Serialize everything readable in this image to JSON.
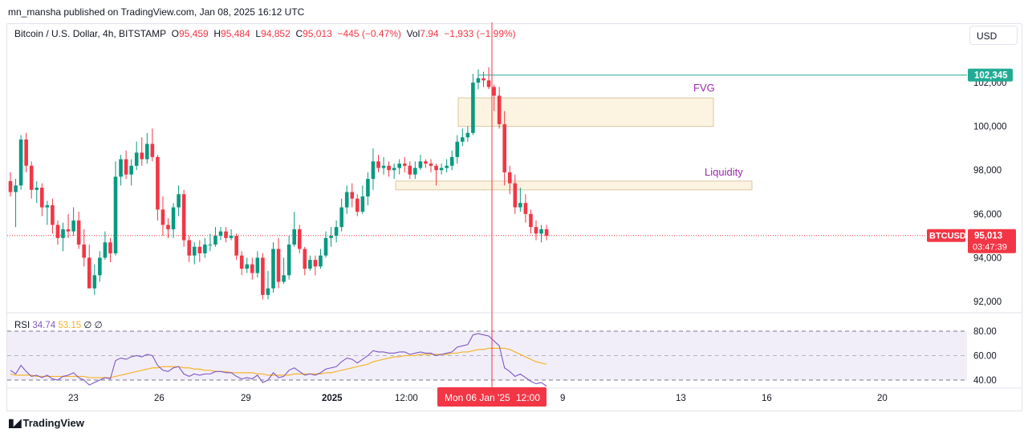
{
  "header": {
    "publish_text": "mn_mansha published on TradingView.com, Jan 08, 2025 16:12 UTC"
  },
  "symbol": {
    "name": "Bitcoin / U.S. Dollar, 4h, BITSTAMP",
    "o_label": "O",
    "o_val": "95,459",
    "h_label": "H",
    "h_val": "95,484",
    "l_label": "L",
    "l_val": "94,852",
    "c_label": "C",
    "c_val": "95,013",
    "change": "−445 (−0.47%)",
    "vol_label": "Vol",
    "vol_val": "7.94",
    "vol_change": "−1,933 (−1.99%)"
  },
  "currency_button": "USD",
  "price_axis": {
    "ticks": [
      "102,000",
      "100,000",
      "98,000",
      "96,000",
      "94,000",
      "92,000"
    ],
    "ticks_value": [
      102000,
      100000,
      98000,
      96000,
      94000,
      92000
    ],
    "high_line_label": "102,345",
    "high_line_value": 102345,
    "current_symbol_tag": "BTCUSD",
    "current_price": "95,013",
    "current_price_value": 95013,
    "countdown": "03:47:39"
  },
  "time_axis": {
    "labels": [
      "23",
      "26",
      "29",
      "2025",
      "12:00",
      "12:00",
      "9",
      "13",
      "16",
      "20"
    ],
    "crosshair_label": "Mon 06 Jan '25"
  },
  "annotations": {
    "fvg": "FVG",
    "liquidity": "Liquidity"
  },
  "rsi": {
    "label": "RSI",
    "value": "34.74",
    "ma_value": "53.15",
    "extra1": "∅",
    "extra2": "∅",
    "ticks": [
      "80.00",
      "60.00",
      "40.00"
    ],
    "ticks_value": [
      80,
      60,
      40
    ]
  },
  "chart_data": {
    "type": "candlestick",
    "candles": [
      [
        97500,
        97000,
        97900,
        96800
      ],
      [
        97000,
        97300,
        97600,
        95400
      ],
      [
        97300,
        99400,
        99600,
        97100
      ],
      [
        99400,
        98200,
        99700,
        97900
      ],
      [
        98200,
        97100,
        98400,
        96700
      ],
      [
        97100,
        97200,
        97500,
        96500
      ],
      [
        97200,
        96300,
        97400,
        95900
      ],
      [
        96300,
        96400,
        96600,
        95500
      ],
      [
        96400,
        95500,
        96700,
        95100
      ],
      [
        95500,
        94900,
        95700,
        94600
      ],
      [
        94900,
        95300,
        95600,
        94300
      ],
      [
        95300,
        95200,
        96000,
        94900
      ],
      [
        95200,
        95700,
        96300,
        95000
      ],
      [
        95700,
        94600,
        96100,
        94400
      ],
      [
        94600,
        94000,
        95300,
        93600
      ],
      [
        94000,
        92600,
        94600,
        92600
      ],
      [
        92600,
        93200,
        93700,
        92300
      ],
      [
        93200,
        94000,
        94300,
        92900
      ],
      [
        94000,
        94700,
        95200,
        93900
      ],
      [
        94700,
        94200,
        94900,
        93800
      ],
      [
        94200,
        97700,
        98400,
        94100
      ],
      [
        97700,
        98500,
        98700,
        97300
      ],
      [
        98500,
        97800,
        98900,
        97600
      ],
      [
        97800,
        98200,
        98500,
        97300
      ],
      [
        98200,
        98800,
        99300,
        98000
      ],
      [
        98800,
        98500,
        99500,
        98200
      ],
      [
        98500,
        99200,
        99700,
        98300
      ],
      [
        99200,
        98600,
        99900,
        98400
      ],
      [
        98600,
        96200,
        98700,
        95700
      ],
      [
        96200,
        95500,
        96800,
        95000
      ],
      [
        95500,
        95300,
        95800,
        94900
      ],
      [
        95300,
        96300,
        96500,
        94900
      ],
      [
        96300,
        96900,
        97300,
        95900
      ],
      [
        96900,
        94800,
        97100,
        94500
      ],
      [
        94800,
        94100,
        95000,
        93800
      ],
      [
        94100,
        94500,
        94700,
        93700
      ],
      [
        94500,
        94200,
        94800,
        93800
      ],
      [
        94200,
        94600,
        94900,
        94000
      ],
      [
        94600,
        94600,
        95100,
        94300
      ],
      [
        94600,
        95000,
        95400,
        94500
      ],
      [
        95000,
        95200,
        95400,
        94800
      ],
      [
        95200,
        94900,
        95400,
        94700
      ],
      [
        94900,
        95000,
        95300,
        94800
      ],
      [
        95000,
        94100,
        95100,
        93900
      ],
      [
        94100,
        93500,
        94300,
        93200
      ],
      [
        93500,
        93700,
        94000,
        93300
      ],
      [
        93700,
        93300,
        94000,
        93000
      ],
      [
        93300,
        94000,
        94300,
        93100
      ],
      [
        94000,
        92300,
        94200,
        92100
      ],
      [
        92300,
        92600,
        93400,
        92100
      ],
      [
        92600,
        94400,
        94700,
        92400
      ],
      [
        94400,
        92900,
        94900,
        92600
      ],
      [
        92900,
        93200,
        94000,
        92800
      ],
      [
        93200,
        94600,
        95000,
        93000
      ],
      [
        94600,
        95300,
        96100,
        94500
      ],
      [
        95300,
        94400,
        95500,
        94200
      ],
      [
        94400,
        93500,
        94500,
        93200
      ],
      [
        93500,
        93900,
        94100,
        93400
      ],
      [
        93900,
        93600,
        94100,
        93200
      ],
      [
        93600,
        94100,
        94400,
        93500
      ],
      [
        94100,
        94900,
        95200,
        94000
      ],
      [
        94900,
        95000,
        95400,
        94500
      ],
      [
        95000,
        95400,
        95700,
        94700
      ],
      [
        95400,
        96300,
        96700,
        95200
      ],
      [
        96300,
        97000,
        97300,
        96000
      ],
      [
        97000,
        96700,
        97400,
        96300
      ],
      [
        96700,
        96100,
        96900,
        95900
      ],
      [
        96100,
        96800,
        97300,
        96000
      ],
      [
        96800,
        97600,
        97900,
        96400
      ],
      [
        97600,
        98400,
        99000,
        97100
      ],
      [
        98400,
        98100,
        98700,
        97900
      ],
      [
        98100,
        98200,
        98600,
        97800
      ],
      [
        98200,
        98000,
        98400,
        97700
      ],
      [
        98000,
        98100,
        98300,
        97600
      ],
      [
        98100,
        98300,
        98500,
        97800
      ],
      [
        98300,
        98200,
        98600,
        97900
      ],
      [
        98200,
        97800,
        98400,
        97600
      ],
      [
        97800,
        98100,
        98400,
        97600
      ],
      [
        98100,
        98400,
        98700,
        98000
      ],
      [
        98400,
        98300,
        98500,
        98100
      ],
      [
        98300,
        98200,
        98500,
        97900
      ],
      [
        98200,
        98000,
        98300,
        97300
      ],
      [
        98000,
        98100,
        98300,
        97800
      ],
      [
        98100,
        98200,
        98500,
        97900
      ],
      [
        98200,
        98600,
        98900,
        98000
      ],
      [
        98600,
        99300,
        99600,
        98300
      ],
      [
        99300,
        99500,
        99900,
        99100
      ],
      [
        99500,
        99700,
        100000,
        99300
      ],
      [
        99700,
        102000,
        102400,
        99600
      ],
      [
        102000,
        102200,
        102600,
        101700
      ],
      [
        102200,
        102100,
        102500,
        101800
      ],
      [
        102100,
        101800,
        102700,
        101700
      ],
      [
        101800,
        101400,
        101900,
        100700
      ],
      [
        101400,
        100100,
        101800,
        99900
      ],
      [
        100100,
        97900,
        100700,
        97300
      ],
      [
        97900,
        97400,
        98200,
        96900
      ],
      [
        97400,
        96300,
        97800,
        96000
      ],
      [
        96300,
        96500,
        97200,
        96100
      ],
      [
        96500,
        96000,
        96900,
        95600
      ],
      [
        96000,
        95400,
        96200,
        95100
      ],
      [
        95400,
        95100,
        95700,
        94800
      ],
      [
        95100,
        95300,
        95500,
        94700
      ],
      [
        95300,
        95000,
        95500,
        94800
      ]
    ],
    "fvg_zone": [
      100000,
      101300
    ],
    "liquidity_zone": [
      97100,
      97500
    ],
    "rsi_line": [
      48,
      45,
      52,
      47,
      43,
      44,
      42,
      44,
      41,
      40,
      43,
      44,
      46,
      42,
      40,
      36,
      38,
      40,
      42,
      41,
      56,
      58,
      57,
      59,
      60,
      59,
      61,
      60,
      52,
      48,
      47,
      50,
      51,
      45,
      43,
      45,
      44,
      45,
      45,
      47,
      47,
      46,
      46,
      43,
      41,
      42,
      41,
      44,
      38,
      40,
      46,
      42,
      43,
      48,
      50,
      47,
      44,
      45,
      44,
      46,
      49,
      50,
      51,
      55,
      58,
      57,
      54,
      57,
      60,
      64,
      63,
      63,
      62,
      62,
      63,
      63,
      61,
      62,
      63,
      62,
      62,
      60,
      61,
      62,
      63,
      67,
      68,
      69,
      77,
      78,
      77,
      76,
      72,
      68,
      50,
      47,
      43,
      45,
      42,
      39,
      37,
      38,
      35
    ],
    "rsi_ma": [
      45,
      44,
      44,
      44,
      44,
      43,
      43,
      43,
      43,
      43,
      43,
      43,
      43,
      43,
      43,
      42,
      42,
      42,
      42,
      42,
      43,
      44,
      45,
      46,
      47,
      48,
      49,
      50,
      50,
      51,
      51,
      51,
      51,
      50,
      50,
      49,
      49,
      48,
      48,
      47,
      47,
      47,
      46,
      46,
      46,
      46,
      46,
      45,
      45,
      44,
      44,
      44,
      44,
      44,
      45,
      45,
      45,
      45,
      45,
      45,
      46,
      46,
      47,
      48,
      49,
      50,
      51,
      52,
      53,
      55,
      56,
      57,
      58,
      59,
      59,
      60,
      60,
      60,
      61,
      61,
      61,
      61,
      61,
      61,
      62,
      62,
      63,
      63,
      64,
      65,
      65,
      66,
      66,
      66,
      66,
      65,
      63,
      61,
      59,
      57,
      55,
      54,
      53
    ]
  }
}
